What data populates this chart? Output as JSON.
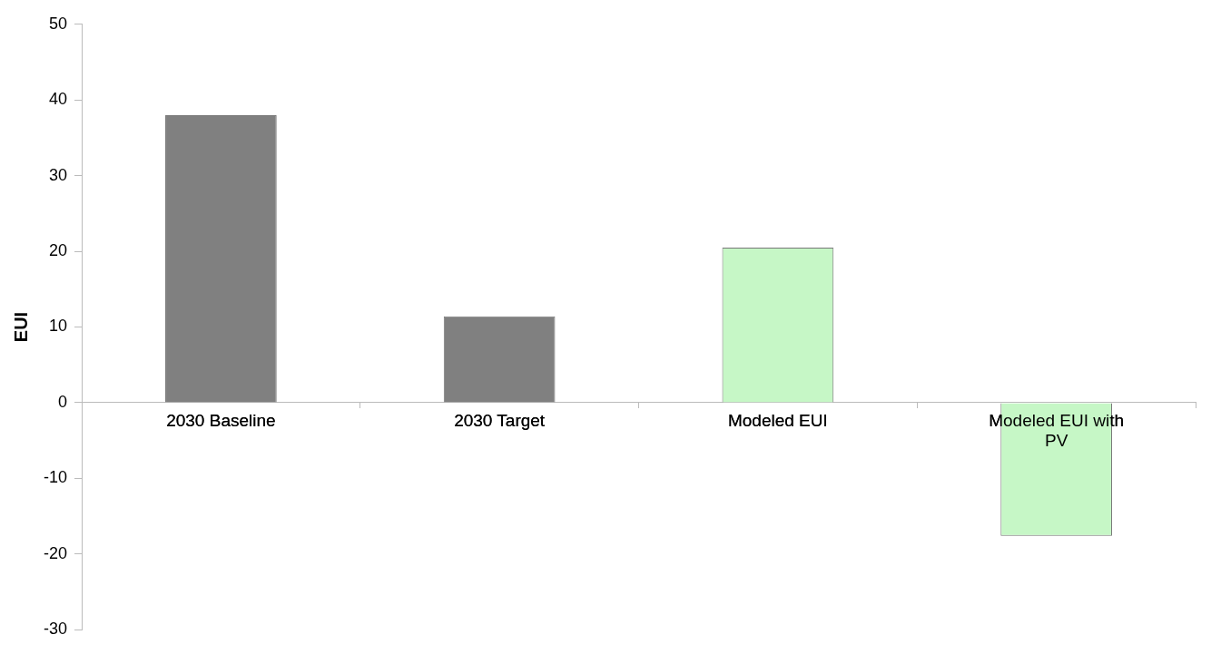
{
  "chart_data": {
    "type": "bar",
    "ylabel": "EUI",
    "categories": [
      "2030 Baseline",
      "2030 Target",
      "Modeled EUI",
      "Modeled EUI with PV"
    ],
    "values": [
      38,
      11.4,
      20.5,
      -17.6
    ],
    "colors": [
      "#808080",
      "#808080",
      "#c6f7c6",
      "#c6f7c6"
    ],
    "ylim": [
      -30,
      50
    ],
    "yticks": [
      -30,
      -20,
      -10,
      0,
      10,
      20,
      30,
      40,
      50
    ],
    "grid": false,
    "legend": false
  }
}
